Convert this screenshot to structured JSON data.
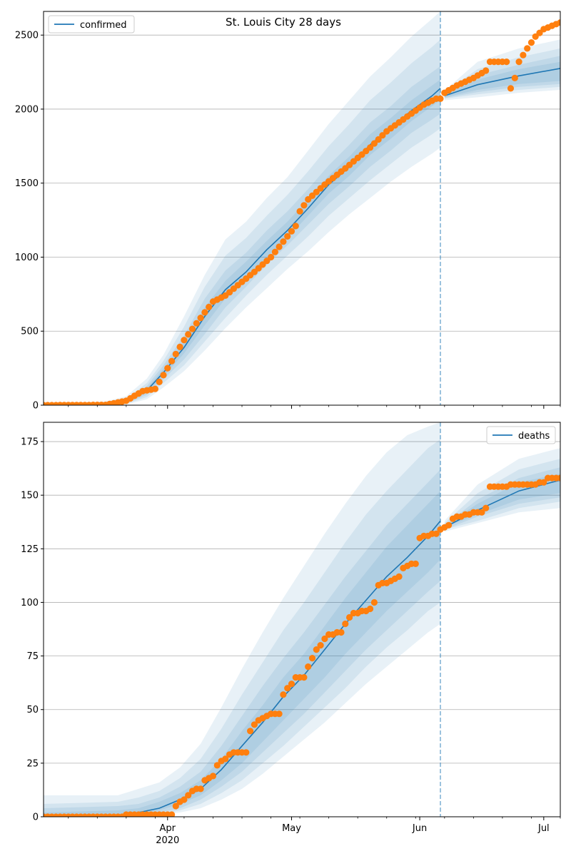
{
  "figure": {
    "title": "St. Louis City 28 days"
  },
  "x_axis": {
    "month_labels": [
      "Apr",
      "May",
      "Jun",
      "Jul"
    ],
    "year_label": "2020"
  },
  "colors": {
    "model_line": "#1f77b4",
    "band": "#1f77b4",
    "observed": "#ff7f0e",
    "grid": "#b0b0b0",
    "cutoff_line": "#1f77b4"
  },
  "chart_data": [
    {
      "type": "line",
      "legend": "confirmed",
      "legend_placement": "upper-left",
      "grid": "horizontal",
      "x_range": [
        "2020-03-02",
        "2020-07-05"
      ],
      "forecast_start": "2020-06-06",
      "ylim": [
        0,
        2660
      ],
      "yticks": [
        0,
        500,
        1000,
        1500,
        2000,
        2500
      ],
      "observed_keypoints": [
        [
          "2020-03-02",
          0
        ],
        [
          "2020-03-17",
          2
        ],
        [
          "2020-03-22",
          30
        ],
        [
          "2020-03-26",
          95
        ],
        [
          "2020-03-29",
          110
        ],
        [
          "2020-04-01",
          250
        ],
        [
          "2020-04-05",
          440
        ],
        [
          "2020-04-09",
          590
        ],
        [
          "2020-04-12",
          700
        ],
        [
          "2020-04-15",
          740
        ],
        [
          "2020-04-18",
          810
        ],
        [
          "2020-04-22",
          900
        ],
        [
          "2020-04-26",
          1000
        ],
        [
          "2020-04-30",
          1140
        ],
        [
          "2020-05-02",
          1210
        ],
        [
          "2020-05-03",
          1310
        ],
        [
          "2020-05-05",
          1390
        ],
        [
          "2020-05-09",
          1490
        ],
        [
          "2020-05-14",
          1600
        ],
        [
          "2020-05-20",
          1740
        ],
        [
          "2020-05-24",
          1850
        ],
        [
          "2020-05-29",
          1950
        ],
        [
          "2020-06-02",
          2030
        ],
        [
          "2020-06-05",
          2070
        ],
        [
          "2020-06-06",
          2070
        ],
        [
          "2020-06-07",
          2110
        ],
        [
          "2020-06-10",
          2160
        ],
        [
          "2020-06-14",
          2210
        ],
        [
          "2020-06-17",
          2260
        ],
        [
          "2020-06-18",
          2320
        ],
        [
          "2020-06-22",
          2320
        ],
        [
          "2020-06-23",
          2140
        ],
        [
          "2020-06-24",
          2210
        ],
        [
          "2020-06-25",
          2320
        ],
        [
          "2020-06-27",
          2410
        ],
        [
          "2020-06-29",
          2490
        ],
        [
          "2020-07-01",
          2540
        ],
        [
          "2020-07-05",
          2585
        ]
      ],
      "model_keypoints": [
        [
          "2020-03-02",
          0
        ],
        [
          "2020-03-17",
          5
        ],
        [
          "2020-03-22",
          20
        ],
        [
          "2020-03-27",
          100
        ],
        [
          "2020-03-31",
          220
        ],
        [
          "2020-04-05",
          390
        ],
        [
          "2020-04-10",
          600
        ],
        [
          "2020-04-15",
          780
        ],
        [
          "2020-04-20",
          900
        ],
        [
          "2020-04-25",
          1050
        ],
        [
          "2020-04-30",
          1180
        ],
        [
          "2020-05-05",
          1330
        ],
        [
          "2020-05-10",
          1490
        ],
        [
          "2020-05-15",
          1610
        ],
        [
          "2020-05-20",
          1760
        ],
        [
          "2020-05-25",
          1870
        ],
        [
          "2020-05-30",
          1990
        ],
        [
          "2020-06-04",
          2090
        ],
        [
          "2020-06-06",
          2140
        ],
        [
          "2020-06-07",
          2090
        ],
        [
          "2020-06-15",
          2165
        ],
        [
          "2020-06-25",
          2225
        ],
        [
          "2020-07-05",
          2275
        ]
      ],
      "band_keypoints": [
        [
          "2020-03-02",
          0,
          0,
          0,
          0,
          0,
          0,
          0,
          0
        ],
        [
          "2020-03-17",
          0,
          0,
          1,
          3,
          8,
          12,
          18,
          25
        ],
        [
          "2020-03-22",
          5,
          8,
          12,
          16,
          25,
          32,
          45,
          60
        ],
        [
          "2020-03-27",
          40,
          55,
          70,
          85,
          115,
          130,
          150,
          180
        ],
        [
          "2020-03-31",
          120,
          150,
          175,
          195,
          245,
          270,
          300,
          340
        ],
        [
          "2020-04-05",
          230,
          270,
          310,
          350,
          430,
          470,
          530,
          600
        ],
        [
          "2020-04-10",
          370,
          430,
          480,
          540,
          660,
          720,
          800,
          880
        ],
        [
          "2020-04-15",
          520,
          590,
          660,
          720,
          840,
          910,
          1010,
          1120
        ],
        [
          "2020-04-20",
          660,
          740,
          800,
          850,
          970,
          1030,
          1130,
          1240
        ],
        [
          "2020-04-25",
          790,
          880,
          950,
          1000,
          1110,
          1180,
          1280,
          1400
        ],
        [
          "2020-04-30",
          920,
          1010,
          1080,
          1130,
          1240,
          1310,
          1420,
          1540
        ],
        [
          "2020-05-05",
          1040,
          1140,
          1220,
          1280,
          1390,
          1460,
          1580,
          1720
        ],
        [
          "2020-05-10",
          1170,
          1280,
          1360,
          1430,
          1550,
          1620,
          1750,
          1900
        ],
        [
          "2020-05-15",
          1290,
          1400,
          1480,
          1550,
          1680,
          1760,
          1900,
          2060
        ],
        [
          "2020-05-20",
          1400,
          1520,
          1610,
          1690,
          1830,
          1910,
          2060,
          2220
        ],
        [
          "2020-05-25",
          1510,
          1630,
          1720,
          1800,
          1940,
          2020,
          2180,
          2350
        ],
        [
          "2020-05-30",
          1610,
          1740,
          1840,
          1920,
          2060,
          2150,
          2310,
          2490
        ],
        [
          "2020-06-04",
          1700,
          1830,
          1930,
          2020,
          2160,
          2250,
          2420,
          2610
        ],
        [
          "2020-06-06",
          1740,
          1870,
          1970,
          2060,
          2200,
          2290,
          2470,
          2660
        ],
        [
          "2020-06-07",
          2060,
          2070,
          2075,
          2080,
          2100,
          2105,
          2115,
          2125
        ],
        [
          "2020-06-15",
          2080,
          2100,
          2115,
          2130,
          2200,
          2230,
          2270,
          2320
        ],
        [
          "2020-06-25",
          2110,
          2130,
          2150,
          2170,
          2270,
          2300,
          2350,
          2410
        ],
        [
          "2020-07-05",
          2130,
          2150,
          2170,
          2190,
          2320,
          2360,
          2410,
          2470
        ]
      ]
    },
    {
      "type": "line",
      "legend": "deaths",
      "legend_placement": "upper-right",
      "grid": "horizontal",
      "x_range": [
        "2020-03-02",
        "2020-07-05"
      ],
      "forecast_start": "2020-06-06",
      "ylim": [
        0,
        184
      ],
      "yticks": [
        0,
        25,
        50,
        75,
        100,
        125,
        150,
        175
      ],
      "observed_keypoints": [
        [
          "2020-03-02",
          0
        ],
        [
          "2020-03-21",
          0
        ],
        [
          "2020-03-22",
          1
        ],
        [
          "2020-04-02",
          1
        ],
        [
          "2020-04-03",
          5
        ],
        [
          "2020-04-05",
          8
        ],
        [
          "2020-04-07",
          12
        ],
        [
          "2020-04-09",
          13
        ],
        [
          "2020-04-10",
          17
        ],
        [
          "2020-04-12",
          19
        ],
        [
          "2020-04-13",
          24
        ],
        [
          "2020-04-14",
          26
        ],
        [
          "2020-04-17",
          30
        ],
        [
          "2020-04-20",
          30
        ],
        [
          "2020-04-21",
          40
        ],
        [
          "2020-04-23",
          45
        ],
        [
          "2020-04-26",
          48
        ],
        [
          "2020-04-28",
          48
        ],
        [
          "2020-04-29",
          57
        ],
        [
          "2020-05-02",
          65
        ],
        [
          "2020-05-04",
          65
        ],
        [
          "2020-05-05",
          70
        ],
        [
          "2020-05-07",
          78
        ],
        [
          "2020-05-10",
          85
        ],
        [
          "2020-05-13",
          86
        ],
        [
          "2020-05-14",
          90
        ],
        [
          "2020-05-16",
          95
        ],
        [
          "2020-05-19",
          96
        ],
        [
          "2020-05-20",
          97
        ],
        [
          "2020-05-21",
          100
        ],
        [
          "2020-05-22",
          108
        ],
        [
          "2020-05-25",
          110
        ],
        [
          "2020-05-27",
          112
        ],
        [
          "2020-05-28",
          116
        ],
        [
          "2020-05-30",
          118
        ],
        [
          "2020-05-31",
          118
        ],
        [
          "2020-06-01",
          130
        ],
        [
          "2020-06-03",
          131
        ],
        [
          "2020-06-05",
          132
        ],
        [
          "2020-06-07",
          135
        ],
        [
          "2020-06-08",
          136
        ],
        [
          "2020-06-09",
          139
        ],
        [
          "2020-06-12",
          141
        ],
        [
          "2020-06-16",
          142
        ],
        [
          "2020-06-17",
          144
        ],
        [
          "2020-06-18",
          154
        ],
        [
          "2020-06-22",
          154
        ],
        [
          "2020-06-23",
          155
        ],
        [
          "2020-06-28",
          155
        ],
        [
          "2020-07-01",
          156
        ],
        [
          "2020-07-02",
          158
        ],
        [
          "2020-07-05",
          158
        ]
      ],
      "model_keypoints": [
        [
          "2020-03-02",
          0
        ],
        [
          "2020-03-20",
          0.5
        ],
        [
          "2020-03-25",
          2
        ],
        [
          "2020-03-30",
          4
        ],
        [
          "2020-04-04",
          8
        ],
        [
          "2020-04-09",
          13
        ],
        [
          "2020-04-14",
          22
        ],
        [
          "2020-04-19",
          33
        ],
        [
          "2020-04-24",
          44
        ],
        [
          "2020-04-29",
          56
        ],
        [
          "2020-05-04",
          66
        ],
        [
          "2020-05-09",
          78
        ],
        [
          "2020-05-14",
          90
        ],
        [
          "2020-05-19",
          101
        ],
        [
          "2020-05-24",
          112
        ],
        [
          "2020-05-29",
          121
        ],
        [
          "2020-06-03",
          131
        ],
        [
          "2020-06-06",
          138
        ],
        [
          "2020-06-07",
          135
        ],
        [
          "2020-06-15",
          143
        ],
        [
          "2020-06-25",
          152
        ],
        [
          "2020-07-05",
          157
        ]
      ],
      "band_keypoints": [
        [
          "2020-03-02",
          0,
          0,
          0,
          0,
          2,
          4,
          6,
          10
        ],
        [
          "2020-03-20",
          0,
          0,
          0,
          0,
          3,
          5,
          7,
          10
        ],
        [
          "2020-03-25",
          0,
          0,
          0,
          1,
          4,
          6,
          9,
          13
        ],
        [
          "2020-03-30",
          1,
          1,
          2,
          3,
          7,
          9,
          12,
          16
        ],
        [
          "2020-04-04",
          2,
          3,
          4,
          6,
          11,
          14,
          18,
          23
        ],
        [
          "2020-04-09",
          4,
          6,
          8,
          10,
          17,
          21,
          27,
          34
        ],
        [
          "2020-04-14",
          8,
          11,
          14,
          17,
          27,
          33,
          41,
          51
        ],
        [
          "2020-04-19",
          13,
          17,
          21,
          25,
          40,
          47,
          57,
          69
        ],
        [
          "2020-04-24",
          20,
          25,
          30,
          35,
          52,
          61,
          72,
          86
        ],
        [
          "2020-04-29",
          28,
          33,
          39,
          45,
          65,
          74,
          87,
          102
        ],
        [
          "2020-05-04",
          36,
          42,
          48,
          55,
          76,
          86,
          100,
          117
        ],
        [
          "2020-05-09",
          44,
          51,
          58,
          65,
          89,
          99,
          114,
          132
        ],
        [
          "2020-05-14",
          53,
          60,
          68,
          76,
          102,
          112,
          128,
          146
        ],
        [
          "2020-05-19",
          62,
          70,
          78,
          86,
          114,
          124,
          141,
          159
        ],
        [
          "2020-05-24",
          70,
          79,
          87,
          96,
          126,
          136,
          152,
          170
        ],
        [
          "2020-05-29",
          78,
          87,
          96,
          105,
          136,
          146,
          162,
          178
        ],
        [
          "2020-06-03",
          86,
          96,
          105,
          114,
          146,
          156,
          172,
          182
        ],
        [
          "2020-06-06",
          90,
          100,
          110,
          120,
          152,
          162,
          176,
          184
        ],
        [
          "2020-06-07",
          133,
          134,
          134,
          135,
          136,
          136,
          137,
          138
        ],
        [
          "2020-06-15",
          137,
          138,
          140,
          141,
          146,
          148,
          151,
          155
        ],
        [
          "2020-06-25",
          142,
          144,
          146,
          148,
          156,
          158,
          162,
          167
        ],
        [
          "2020-07-05",
          144,
          147,
          149,
          151,
          160,
          163,
          167,
          172
        ]
      ]
    }
  ]
}
